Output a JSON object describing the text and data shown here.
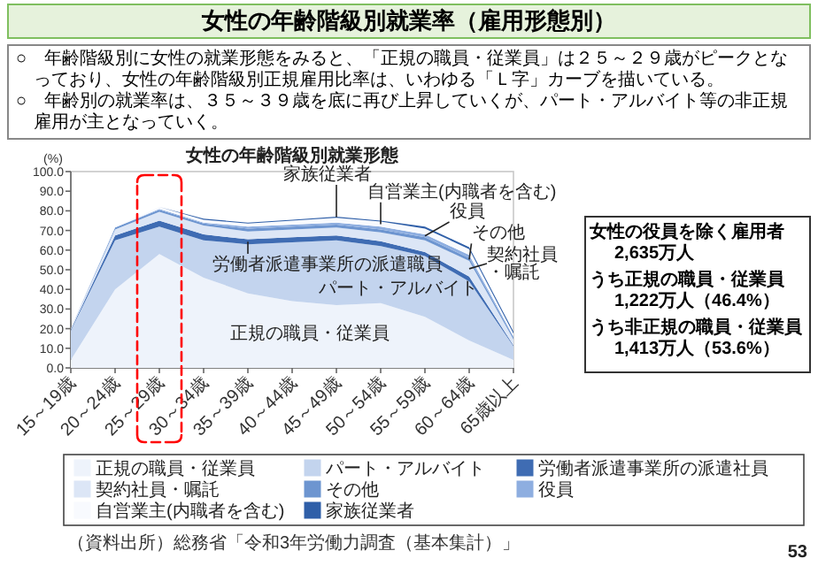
{
  "chart_data": {
    "type": "area",
    "stacked": true,
    "title": "女性の年齢階級別就業率（雇用形態別）",
    "subtitle": "女性の年齢階級別就業形態",
    "ylabel": "(%)",
    "categories": [
      "15～19歳",
      "20～24歳",
      "25～29歳",
      "30～34歳",
      "35～39歳",
      "40～44歳",
      "45～49歳",
      "50～54歳",
      "55～59歳",
      "60～64歳",
      "65歳以上"
    ],
    "series": [
      {
        "name": "正規の職員・従業員",
        "color": "#eef3fb",
        "values": [
          4,
          40,
          58,
          46,
          38,
          34,
          32,
          33,
          26,
          14,
          4
        ]
      },
      {
        "name": "パート・アルバイト",
        "color": "#c3d4ee",
        "values": [
          15,
          25,
          14,
          19,
          25,
          30,
          33,
          29,
          31,
          30,
          7
        ]
      },
      {
        "name": "労働者派遣事業所の派遣社員",
        "color": "#3f6cb3",
        "values": [
          0.5,
          2.5,
          3,
          3,
          2.5,
          2.5,
          2.5,
          2.5,
          2,
          2.5,
          0.5
        ]
      },
      {
        "name": "契約社員・嘱託",
        "color": "#dce6f6",
        "values": [
          0.5,
          3,
          4.5,
          4.5,
          4,
          4,
          4,
          4.5,
          6,
          8,
          3
        ]
      },
      {
        "name": "その他",
        "color": "#6d95d0",
        "values": [
          0,
          1,
          1,
          1,
          1.5,
          1.5,
          1.5,
          1.5,
          1.5,
          1.5,
          1
        ]
      },
      {
        "name": "役員",
        "color": "#8eaee0",
        "values": [
          0,
          0,
          0.5,
          0.5,
          1,
          1,
          1,
          1.5,
          1.5,
          1.5,
          0.5
        ]
      },
      {
        "name": "自営業主(内職者を含む)",
        "color": "#f8fafe",
        "values": [
          0,
          0.5,
          1,
          1.5,
          1.5,
          2,
          2.5,
          2.5,
          3,
          3,
          1.5
        ]
      },
      {
        "name": "家族従業者",
        "color": "#2f5fa8",
        "values": [
          0,
          0,
          0,
          0.5,
          0.5,
          0.5,
          0.5,
          0.5,
          1,
          1,
          1
        ]
      }
    ],
    "ylim": [
      0,
      100
    ],
    "yticks": [
      {
        "value": 0,
        "label": "0.0"
      },
      {
        "value": 10,
        "label": "10.0"
      },
      {
        "value": 20,
        "label": "20.0"
      },
      {
        "value": 30,
        "label": "30.0"
      },
      {
        "value": 40,
        "label": "40.0"
      },
      {
        "value": 50,
        "label": "50.0"
      },
      {
        "value": 60,
        "label": "60.0"
      },
      {
        "value": 70,
        "label": "70.0"
      },
      {
        "value": 80,
        "label": "80.0"
      },
      {
        "value": 90,
        "label": "90.0"
      },
      {
        "value": 100,
        "label": "100.0"
      }
    ],
    "legend": "bottom",
    "annotations": [
      "○　年齢階級別に女性の就業形態をみると、「正規の職員・従業員」は２５～２９歳がピークとなっており、女性の年齢階級別正規雇用比率は、いわゆる「Ｌ字」カーブを描いている。",
      "○　年齢別の就業率は、３５～３９歳を底に再び上昇していくが、パート・アルバイト等の非正規雇用が主となっていく。",
      "家族従業者",
      "自営業主(内職者を含む)",
      "役員",
      "その他",
      "契約社員・嘱託",
      "労働者派遣事業所の派遣職員",
      "パート・アルバイト",
      "正規の職員・従業員",
      "女性の役員を除く雇用者",
      "2,635万人",
      "うち正規の職員・従業員",
      "1,222万人（46.4%）",
      "うち非正規の職員・従業員",
      "1,413万人（53.6%）",
      "（資料出所）総務省「令和3年労働力調査（基本集計）」",
      "53"
    ]
  }
}
